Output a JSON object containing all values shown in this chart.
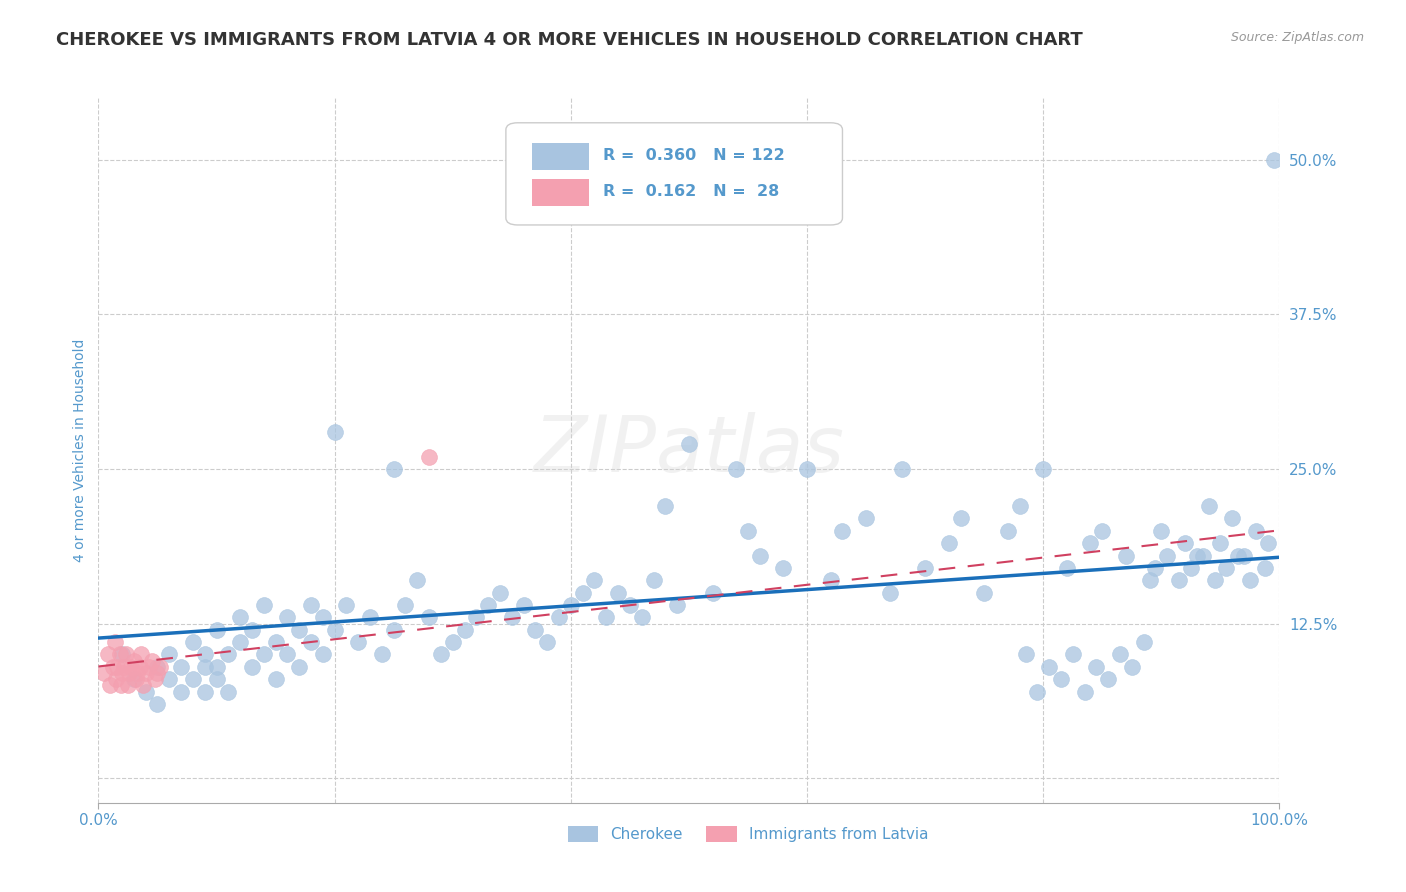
{
  "title": "CHEROKEE VS IMMIGRANTS FROM LATVIA 4 OR MORE VEHICLES IN HOUSEHOLD CORRELATION CHART",
  "source_text": "Source: ZipAtlas.com",
  "ylabel": "4 or more Vehicles in Household",
  "xlim": [
    0,
    1.0
  ],
  "ylim": [
    -0.02,
    0.55
  ],
  "xtick_labels": [
    "0.0%",
    "100.0%"
  ],
  "ytick_positions": [
    0.0,
    0.125,
    0.25,
    0.375,
    0.5
  ],
  "ytick_labels": [
    "",
    "12.5%",
    "25.0%",
    "37.5%",
    "50.0%"
  ],
  "legend_label1": "Cherokee",
  "legend_label2": "Immigrants from Latvia",
  "R1": 0.36,
  "N1": 122,
  "R2": 0.162,
  "N2": 28,
  "color_cherokee": "#a8c4e0",
  "color_latvia": "#f4a0b0",
  "color_line_cherokee": "#1a6fba",
  "color_line_latvia": "#d04060",
  "background_color": "#ffffff",
  "grid_color": "#cccccc",
  "axis_label_color": "#5599cc",
  "watermark_text": "ZIPatlas",
  "cherokee_x": [
    0.02,
    0.03,
    0.04,
    0.05,
    0.05,
    0.06,
    0.06,
    0.07,
    0.07,
    0.08,
    0.08,
    0.09,
    0.09,
    0.09,
    0.1,
    0.1,
    0.1,
    0.11,
    0.11,
    0.12,
    0.12,
    0.13,
    0.13,
    0.14,
    0.14,
    0.15,
    0.15,
    0.16,
    0.16,
    0.17,
    0.17,
    0.18,
    0.18,
    0.19,
    0.19,
    0.2,
    0.2,
    0.21,
    0.22,
    0.23,
    0.24,
    0.25,
    0.25,
    0.26,
    0.27,
    0.28,
    0.29,
    0.3,
    0.31,
    0.32,
    0.33,
    0.34,
    0.35,
    0.36,
    0.37,
    0.38,
    0.39,
    0.4,
    0.41,
    0.42,
    0.43,
    0.44,
    0.45,
    0.46,
    0.47,
    0.48,
    0.49,
    0.5,
    0.52,
    0.54,
    0.55,
    0.56,
    0.58,
    0.6,
    0.62,
    0.63,
    0.65,
    0.67,
    0.68,
    0.7,
    0.72,
    0.73,
    0.75,
    0.77,
    0.78,
    0.8,
    0.82,
    0.84,
    0.85,
    0.87,
    0.89,
    0.9,
    0.92,
    0.93,
    0.94,
    0.95,
    0.96,
    0.97,
    0.98,
    0.99,
    0.995,
    0.988,
    0.975,
    0.965,
    0.955,
    0.945,
    0.935,
    0.925,
    0.915,
    0.905,
    0.895,
    0.885,
    0.875,
    0.865,
    0.855,
    0.845,
    0.835,
    0.825,
    0.815,
    0.805,
    0.795,
    0.785
  ],
  "cherokee_y": [
    0.1,
    0.08,
    0.07,
    0.09,
    0.06,
    0.08,
    0.1,
    0.07,
    0.09,
    0.08,
    0.11,
    0.09,
    0.07,
    0.1,
    0.09,
    0.12,
    0.08,
    0.1,
    0.07,
    0.11,
    0.13,
    0.09,
    0.12,
    0.1,
    0.14,
    0.11,
    0.08,
    0.13,
    0.1,
    0.12,
    0.09,
    0.14,
    0.11,
    0.13,
    0.1,
    0.12,
    0.28,
    0.14,
    0.11,
    0.13,
    0.1,
    0.25,
    0.12,
    0.14,
    0.16,
    0.13,
    0.1,
    0.11,
    0.12,
    0.13,
    0.14,
    0.15,
    0.13,
    0.14,
    0.12,
    0.11,
    0.13,
    0.14,
    0.15,
    0.16,
    0.13,
    0.15,
    0.14,
    0.13,
    0.16,
    0.22,
    0.14,
    0.27,
    0.15,
    0.25,
    0.2,
    0.18,
    0.17,
    0.25,
    0.16,
    0.2,
    0.21,
    0.15,
    0.25,
    0.17,
    0.19,
    0.21,
    0.15,
    0.2,
    0.22,
    0.25,
    0.17,
    0.19,
    0.2,
    0.18,
    0.16,
    0.2,
    0.19,
    0.18,
    0.22,
    0.19,
    0.21,
    0.18,
    0.2,
    0.19,
    0.5,
    0.17,
    0.16,
    0.18,
    0.17,
    0.16,
    0.18,
    0.17,
    0.16,
    0.18,
    0.17,
    0.11,
    0.09,
    0.1,
    0.08,
    0.09,
    0.07,
    0.1,
    0.08,
    0.09,
    0.07,
    0.1
  ],
  "latvia_x": [
    0.005,
    0.008,
    0.01,
    0.012,
    0.014,
    0.015,
    0.016,
    0.018,
    0.019,
    0.02,
    0.022,
    0.023,
    0.025,
    0.026,
    0.028,
    0.03,
    0.032,
    0.033,
    0.035,
    0.036,
    0.038,
    0.04,
    0.043,
    0.045,
    0.048,
    0.05,
    0.052,
    0.28
  ],
  "latvia_y": [
    0.085,
    0.1,
    0.075,
    0.09,
    0.11,
    0.08,
    0.09,
    0.1,
    0.075,
    0.085,
    0.09,
    0.1,
    0.075,
    0.085,
    0.09,
    0.095,
    0.08,
    0.085,
    0.09,
    0.1,
    0.075,
    0.085,
    0.09,
    0.095,
    0.08,
    0.085,
    0.09,
    0.26
  ],
  "grid_vlines": [
    0.0,
    0.2,
    0.4,
    0.6,
    0.8,
    1.0
  ]
}
